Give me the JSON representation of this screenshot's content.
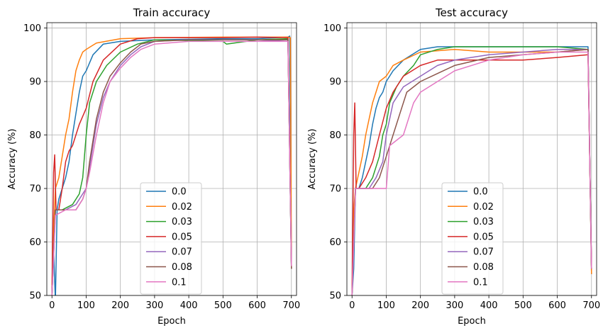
{
  "chart_data": [
    {
      "type": "line",
      "title": "Train accuracy",
      "xlabel": "Epoch",
      "ylabel": "Accuracy (%)",
      "xlim": [
        -15,
        715
      ],
      "ylim": [
        50,
        101
      ],
      "xticks": [
        0,
        100,
        200,
        300,
        400,
        500,
        600,
        700
      ],
      "yticks": [
        50,
        60,
        70,
        80,
        90,
        100
      ],
      "grid": true,
      "legend": "lower-center",
      "series": [
        {
          "name": "0.0",
          "color": "#1f77b4",
          "points": [
            [
              0,
              50
            ],
            [
              5,
              58
            ],
            [
              10,
              49
            ],
            [
              15,
              66
            ],
            [
              20,
              68
            ],
            [
              30,
              70
            ],
            [
              40,
              72
            ],
            [
              50,
              75
            ],
            [
              60,
              80
            ],
            [
              70,
              84
            ],
            [
              80,
              88
            ],
            [
              90,
              91
            ],
            [
              100,
              92
            ],
            [
              120,
              95
            ],
            [
              150,
              97
            ],
            [
              200,
              97.5
            ],
            [
              300,
              97.8
            ],
            [
              500,
              98
            ],
            [
              600,
              98
            ],
            [
              690,
              98.3
            ],
            [
              695,
              98.5
            ],
            [
              700,
              55
            ]
          ]
        },
        {
          "name": "0.02",
          "color": "#ff7f0e",
          "points": [
            [
              0,
              52
            ],
            [
              5,
              62
            ],
            [
              10,
              70
            ],
            [
              20,
              72
            ],
            [
              30,
              76
            ],
            [
              40,
              80
            ],
            [
              50,
              83
            ],
            [
              60,
              88
            ],
            [
              70,
              92
            ],
            [
              80,
              94
            ],
            [
              90,
              95.5
            ],
            [
              100,
              96
            ],
            [
              130,
              97.2
            ],
            [
              200,
              98
            ],
            [
              300,
              98.2
            ],
            [
              500,
              98.3
            ],
            [
              690,
              98.3
            ],
            [
              697,
              98.2
            ],
            [
              700,
              55
            ]
          ]
        },
        {
          "name": "0.03",
          "color": "#2ca02c",
          "points": [
            [
              0,
              50
            ],
            [
              10,
              66
            ],
            [
              30,
              66
            ],
            [
              60,
              67
            ],
            [
              80,
              69
            ],
            [
              90,
              72
            ],
            [
              100,
              80
            ],
            [
              110,
              86
            ],
            [
              130,
              90
            ],
            [
              160,
              93
            ],
            [
              200,
              95.5
            ],
            [
              250,
              97
            ],
            [
              300,
              97.8
            ],
            [
              500,
              97.5
            ],
            [
              510,
              97
            ],
            [
              600,
              97.8
            ],
            [
              690,
              98
            ],
            [
              700,
              55
            ]
          ]
        },
        {
          "name": "0.05",
          "color": "#d62728",
          "points": [
            [
              0,
              50
            ],
            [
              5,
              73
            ],
            [
              8,
              76.3
            ],
            [
              12,
              66
            ],
            [
              20,
              66
            ],
            [
              30,
              70
            ],
            [
              40,
              75
            ],
            [
              50,
              77
            ],
            [
              60,
              78
            ],
            [
              70,
              80
            ],
            [
              80,
              82
            ],
            [
              100,
              85
            ],
            [
              120,
              90
            ],
            [
              150,
              94
            ],
            [
              200,
              97
            ],
            [
              250,
              98
            ],
            [
              300,
              98.2
            ],
            [
              500,
              98.2
            ],
            [
              600,
              98.3
            ],
            [
              690,
              98.2
            ],
            [
              700,
              55.5
            ]
          ]
        },
        {
          "name": "0.07",
          "color": "#9467bd",
          "points": [
            [
              0,
              50
            ],
            [
              10,
              66
            ],
            [
              40,
              66
            ],
            [
              70,
              67
            ],
            [
              90,
              69
            ],
            [
              100,
              70
            ],
            [
              110,
              74
            ],
            [
              130,
              82
            ],
            [
              150,
              87
            ],
            [
              170,
              90
            ],
            [
              200,
              93
            ],
            [
              230,
              95
            ],
            [
              260,
              96.5
            ],
            [
              300,
              97.5
            ],
            [
              400,
              97.8
            ],
            [
              600,
              97.8
            ],
            [
              690,
              97.5
            ],
            [
              700,
              55
            ]
          ]
        },
        {
          "name": "0.08",
          "color": "#8c564b",
          "points": [
            [
              0,
              50
            ],
            [
              10,
              66
            ],
            [
              40,
              66
            ],
            [
              70,
              66
            ],
            [
              90,
              68
            ],
            [
              100,
              70
            ],
            [
              110,
              75
            ],
            [
              130,
              83
            ],
            [
              150,
              88
            ],
            [
              170,
              91
            ],
            [
              200,
              93.5
            ],
            [
              230,
              95.5
            ],
            [
              260,
              97
            ],
            [
              300,
              97.5
            ],
            [
              400,
              97.8
            ],
            [
              600,
              97.8
            ],
            [
              690,
              97.8
            ],
            [
              700,
              55
            ]
          ]
        },
        {
          "name": "0.1",
          "color": "#e377c2",
          "points": [
            [
              0,
              50
            ],
            [
              10,
              65
            ],
            [
              40,
              66
            ],
            [
              70,
              66
            ],
            [
              90,
              68
            ],
            [
              100,
              70
            ],
            [
              110,
              73
            ],
            [
              130,
              80
            ],
            [
              150,
              86
            ],
            [
              170,
              90
            ],
            [
              200,
              92.5
            ],
            [
              230,
              94.5
            ],
            [
              260,
              96
            ],
            [
              300,
              97
            ],
            [
              400,
              97.5
            ],
            [
              600,
              97.5
            ],
            [
              690,
              97.5
            ],
            [
              700,
              55.5
            ]
          ]
        }
      ]
    },
    {
      "type": "line",
      "title": "Test accuracy",
      "xlabel": "Epoch",
      "ylabel": "Accuracy (%)",
      "xlim": [
        -15,
        715
      ],
      "ylim": [
        50,
        101
      ],
      "xticks": [
        0,
        100,
        200,
        300,
        400,
        500,
        600,
        700
      ],
      "yticks": [
        50,
        60,
        70,
        80,
        90,
        100
      ],
      "grid": true,
      "legend": "lower-center",
      "series": [
        {
          "name": "0.0",
          "color": "#1f77b4",
          "points": [
            [
              0,
              50
            ],
            [
              5,
              55
            ],
            [
              10,
              70
            ],
            [
              20,
              70
            ],
            [
              30,
              72
            ],
            [
              40,
              75
            ],
            [
              50,
              78
            ],
            [
              60,
              82
            ],
            [
              70,
              85
            ],
            [
              80,
              87
            ],
            [
              90,
              88
            ],
            [
              100,
              90
            ],
            [
              120,
              92
            ],
            [
              150,
              94
            ],
            [
              200,
              96
            ],
            [
              250,
              96.5
            ],
            [
              300,
              96.5
            ],
            [
              400,
              96.5
            ],
            [
              500,
              96.5
            ],
            [
              600,
              96.5
            ],
            [
              690,
              96.5
            ],
            [
              700,
              54
            ]
          ]
        },
        {
          "name": "0.02",
          "color": "#ff7f0e",
          "points": [
            [
              0,
              50
            ],
            [
              5,
              66
            ],
            [
              10,
              70
            ],
            [
              20,
              73
            ],
            [
              30,
              76
            ],
            [
              40,
              80
            ],
            [
              50,
              83
            ],
            [
              60,
              86
            ],
            [
              70,
              88
            ],
            [
              80,
              90
            ],
            [
              100,
              91
            ],
            [
              120,
              93
            ],
            [
              150,
              94
            ],
            [
              200,
              95.5
            ],
            [
              300,
              96
            ],
            [
              400,
              95.5
            ],
            [
              500,
              95.5
            ],
            [
              600,
              95.5
            ],
            [
              690,
              96
            ],
            [
              700,
              54
            ]
          ]
        },
        {
          "name": "0.03",
          "color": "#2ca02c",
          "points": [
            [
              0,
              50
            ],
            [
              10,
              70
            ],
            [
              40,
              70
            ],
            [
              60,
              72
            ],
            [
              80,
              76
            ],
            [
              90,
              80
            ],
            [
              100,
              82
            ],
            [
              110,
              86
            ],
            [
              130,
              89
            ],
            [
              150,
              91
            ],
            [
              180,
              93
            ],
            [
              200,
              95
            ],
            [
              250,
              96
            ],
            [
              300,
              96.5
            ],
            [
              400,
              96.5
            ],
            [
              600,
              96.5
            ],
            [
              690,
              96
            ],
            [
              700,
              55
            ]
          ]
        },
        {
          "name": "0.05",
          "color": "#d62728",
          "points": [
            [
              0,
              50
            ],
            [
              5,
              80
            ],
            [
              8,
              86
            ],
            [
              12,
              70
            ],
            [
              20,
              70
            ],
            [
              40,
              72
            ],
            [
              60,
              75
            ],
            [
              80,
              80
            ],
            [
              100,
              85
            ],
            [
              120,
              88
            ],
            [
              150,
              91
            ],
            [
              200,
              93
            ],
            [
              250,
              94
            ],
            [
              300,
              94
            ],
            [
              400,
              94
            ],
            [
              500,
              94
            ],
            [
              600,
              94.5
            ],
            [
              690,
              95
            ],
            [
              700,
              55
            ]
          ]
        },
        {
          "name": "0.07",
          "color": "#9467bd",
          "points": [
            [
              0,
              50
            ],
            [
              10,
              70
            ],
            [
              50,
              70
            ],
            [
              70,
              72
            ],
            [
              90,
              75
            ],
            [
              100,
              80
            ],
            [
              120,
              86
            ],
            [
              150,
              89
            ],
            [
              200,
              91
            ],
            [
              250,
              93
            ],
            [
              300,
              94
            ],
            [
              400,
              95
            ],
            [
              500,
              95.5
            ],
            [
              600,
              96
            ],
            [
              690,
              96
            ],
            [
              700,
              55
            ]
          ]
        },
        {
          "name": "0.08",
          "color": "#8c564b",
          "points": [
            [
              0,
              50
            ],
            [
              10,
              70
            ],
            [
              60,
              70
            ],
            [
              80,
              72
            ],
            [
              100,
              76
            ],
            [
              120,
              80
            ],
            [
              140,
              84
            ],
            [
              160,
              88
            ],
            [
              200,
              90
            ],
            [
              250,
              91.5
            ],
            [
              300,
              93
            ],
            [
              400,
              94.5
            ],
            [
              500,
              95
            ],
            [
              600,
              95.5
            ],
            [
              690,
              96
            ],
            [
              700,
              55
            ]
          ]
        },
        {
          "name": "0.1",
          "color": "#e377c2",
          "points": [
            [
              0,
              50
            ],
            [
              10,
              70
            ],
            [
              100,
              70
            ],
            [
              110,
              78
            ],
            [
              150,
              80
            ],
            [
              160,
              82
            ],
            [
              180,
              86
            ],
            [
              200,
              88
            ],
            [
              250,
              90
            ],
            [
              300,
              92
            ],
            [
              400,
              94
            ],
            [
              500,
              95
            ],
            [
              600,
              95.5
            ],
            [
              690,
              95.5
            ],
            [
              700,
              55
            ]
          ]
        }
      ]
    }
  ]
}
